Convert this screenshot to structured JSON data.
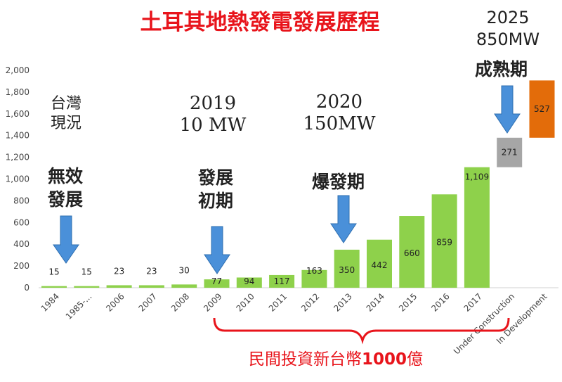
{
  "title": "土耳其地熱發電發展歷程",
  "chart_data": {
    "type": "bar",
    "title": "土耳其地熱發電發展歷程",
    "categories": [
      "1984",
      "1985-...",
      "2006",
      "2007",
      "2008",
      "2009",
      "2010",
      "2011",
      "2012",
      "2013",
      "2014",
      "2015",
      "2016",
      "2017",
      "Under Construction",
      "In Development"
    ],
    "ylim": [
      0,
      2000
    ],
    "yticks": [
      0,
      200,
      400,
      600,
      800,
      "1,000",
      "1,200",
      "1,400",
      "1,600",
      "1,800",
      "2,000"
    ],
    "grid": false,
    "legend": "none",
    "bars": [
      {
        "category": "1984",
        "value": 15,
        "label": "15",
        "color": "#8ed14b",
        "base": 0
      },
      {
        "category": "1985-...",
        "value": 15,
        "label": "15",
        "color": "#8ed14b",
        "base": 0
      },
      {
        "category": "2006",
        "value": 23,
        "label": "23",
        "color": "#8ed14b",
        "base": 0
      },
      {
        "category": "2007",
        "value": 23,
        "label": "23",
        "color": "#8ed14b",
        "base": 0
      },
      {
        "category": "2008",
        "value": 30,
        "label": "30",
        "color": "#8ed14b",
        "base": 0
      },
      {
        "category": "2009",
        "value": 77,
        "label": "77",
        "color": "#8ed14b",
        "base": 0
      },
      {
        "category": "2010",
        "value": 94,
        "label": "94",
        "color": "#8ed14b",
        "base": 0
      },
      {
        "category": "2011",
        "value": 117,
        "label": "117",
        "color": "#8ed14b",
        "base": 0
      },
      {
        "category": "2012",
        "value": 163,
        "label": "163",
        "color": "#8ed14b",
        "base": 0
      },
      {
        "category": "2013",
        "value": 350,
        "label": "350",
        "color": "#8ed14b",
        "base": 0
      },
      {
        "category": "2014",
        "value": 442,
        "label": "442",
        "color": "#8ed14b",
        "base": 0
      },
      {
        "category": "2015",
        "value": 660,
        "label": "660",
        "color": "#8ed14b",
        "base": 0
      },
      {
        "category": "2016",
        "value": 859,
        "label": "859",
        "color": "#8ed14b",
        "base": 0
      },
      {
        "category": "2017",
        "value": 1109,
        "label": "1,109",
        "color": "#8ed14b",
        "base": 0
      },
      {
        "category": "Under Construction",
        "value": 271,
        "label": "271",
        "color": "#a6a6a6",
        "base": 1109
      },
      {
        "category": "In Development",
        "value": 527,
        "label": "527",
        "color": "#e36c0a",
        "base": 1380
      }
    ]
  },
  "annotations": {
    "taiwan_line1": "台灣",
    "taiwan_line2": "現況",
    "a2019_year": "2019",
    "a2019_value": "10 MW",
    "a2020_year": "2020",
    "a2020_value": "150MW",
    "a2025_year": "2025",
    "a2025_value": "850MW",
    "stage_ineffective_1": "無效",
    "stage_ineffective_2": "發展",
    "stage_early_1": "發展",
    "stage_early_2": "初期",
    "stage_boom": "爆發期",
    "stage_mature": "成熟期",
    "investment": "民間投資新台幣",
    "investment_amount": "1000",
    "investment_unit": "億"
  },
  "colors": {
    "title": "#e8141b",
    "arrow": "#4a90d9",
    "green": "#8ed14b",
    "gray": "#a6a6a6",
    "orange": "#e36c0a",
    "brace": "#e8141b"
  }
}
